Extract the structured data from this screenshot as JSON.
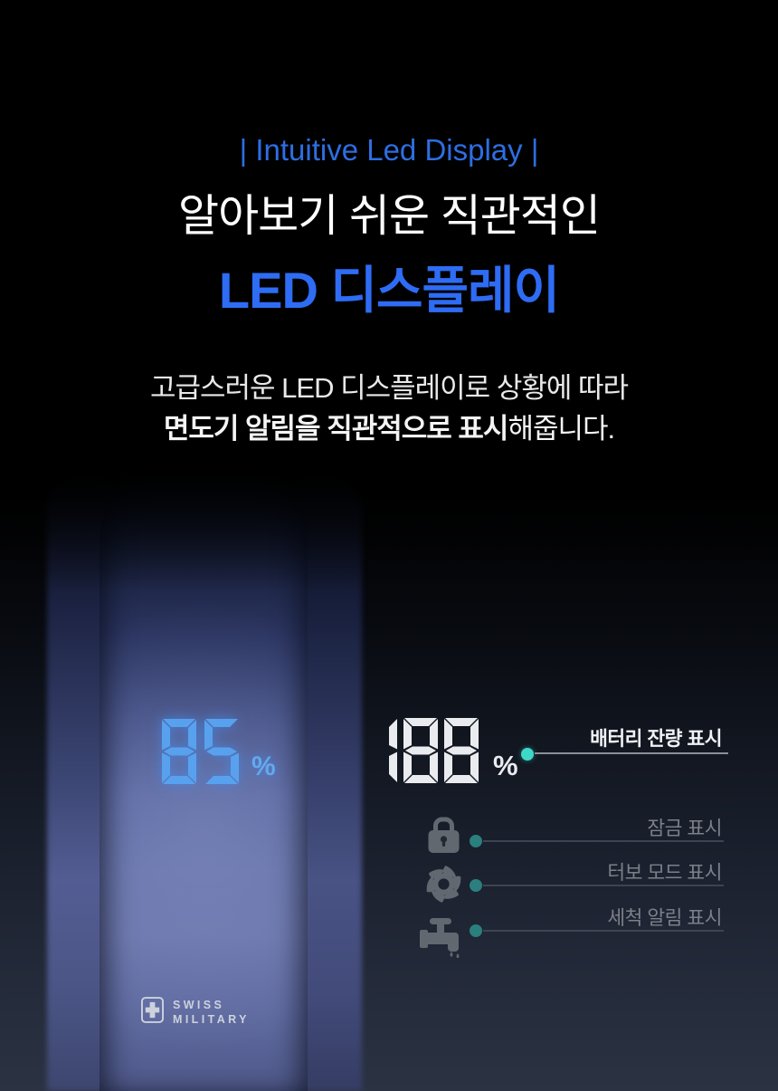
{
  "page": {
    "eyebrow": "| Intuitive Led Display |",
    "headline": "알아보기 쉬운 직관적인",
    "headline_accent": "LED 디스플레이",
    "description_line1": "고급스러운 LED 디스플레이로 상황에 따라",
    "description_line2_bold": "면도기 알림을 직관적으로 표시",
    "description_line2_regular": "해줍니다.",
    "accent_color": "#2e6cf4",
    "background_bottom_color": "#2b3343"
  },
  "shaver": {
    "display_value": "85",
    "display_unit": "%",
    "display_color": "#58a1ee",
    "body_color": "#6874ac",
    "brand_line1": "SWISS",
    "brand_line2": "MILITARY"
  },
  "callouts": {
    "battery": {
      "value": "188",
      "unit": "%",
      "label": "배터리 잔량 표시",
      "digit_color": "#e9ebef",
      "dot_color": "#3ed8c6"
    },
    "items": [
      {
        "icon": "lock-icon",
        "label": "잠금 표시"
      },
      {
        "icon": "turbo-icon",
        "label": "터보 모드 표시"
      },
      {
        "icon": "faucet-icon",
        "label": "세척 알림 표시"
      }
    ],
    "dim_dot_color": "#2b7f7e",
    "dim_line_color": "#3e4450"
  }
}
